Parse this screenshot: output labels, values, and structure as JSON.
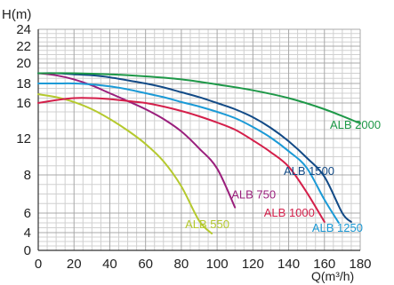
{
  "chart_data": {
    "type": "line",
    "ylabel": "H(m)",
    "xlabel": "Q(m³/h)",
    "xlim": [
      0,
      180
    ],
    "ylim_note": "y axis is non-linear; tick labels shown below",
    "x_ticks": [
      "0",
      "20",
      "40",
      "60",
      "80",
      "100",
      "120",
      "140",
      "160",
      "180"
    ],
    "y_ticks": [
      "0",
      "4",
      "6",
      "8",
      "12",
      "16",
      "18",
      "20",
      "22",
      "24"
    ],
    "grid": true,
    "series": [
      {
        "name": "ALB 550",
        "color": "#b5c92e",
        "x": [
          0,
          10,
          20,
          30,
          40,
          50,
          60,
          70,
          80,
          90,
          97
        ],
        "y": [
          16.9,
          16.6,
          16.1,
          15.3,
          14.2,
          12.9,
          11.4,
          9.5,
          7.4,
          5.2,
          3.8
        ]
      },
      {
        "name": "ALB 750",
        "color": "#9a1f7c",
        "x": [
          0,
          10,
          20,
          30,
          40,
          50,
          60,
          70,
          80,
          90,
          100,
          110
        ],
        "y": [
          19.0,
          18.8,
          18.4,
          17.8,
          17.0,
          16.2,
          15.3,
          14.2,
          12.8,
          10.9,
          8.7,
          6.3
        ]
      },
      {
        "name": "ALB 1000",
        "color": "#d41f4a",
        "x": [
          0,
          10,
          20,
          30,
          40,
          50,
          60,
          70,
          80,
          90,
          100,
          110,
          120,
          130,
          140,
          150,
          160
        ],
        "y": [
          16.0,
          16.3,
          16.5,
          16.5,
          16.4,
          16.2,
          16.0,
          15.6,
          15.1,
          14.5,
          13.8,
          13.0,
          11.8,
          10.5,
          8.9,
          7.1,
          5.1
        ]
      },
      {
        "name": "ALB 1250",
        "color": "#1b9ad6",
        "x": [
          0,
          10,
          20,
          30,
          40,
          50,
          60,
          70,
          80,
          90,
          100,
          110,
          120,
          130,
          140,
          150,
          160,
          168
        ],
        "y": [
          18.0,
          18.0,
          18.0,
          17.9,
          17.7,
          17.4,
          17.0,
          16.6,
          16.1,
          15.6,
          15.0,
          14.3,
          13.3,
          12.1,
          10.6,
          8.8,
          6.7,
          5.0
        ]
      },
      {
        "name": "ALB 1500",
        "color": "#124a86",
        "x": [
          0,
          10,
          20,
          30,
          40,
          50,
          60,
          70,
          80,
          90,
          100,
          110,
          120,
          130,
          140,
          150,
          160,
          170,
          175
        ],
        "y": [
          19.0,
          19.0,
          18.9,
          18.8,
          18.6,
          18.3,
          18.0,
          17.6,
          17.1,
          16.6,
          16.0,
          15.3,
          14.4,
          13.2,
          11.7,
          9.9,
          7.9,
          6.0,
          5.1
        ]
      },
      {
        "name": "ALB 2000",
        "color": "#1e9848",
        "x": [
          0,
          20,
          40,
          60,
          80,
          100,
          120,
          140,
          160,
          180
        ],
        "y": [
          19.0,
          19.0,
          18.9,
          18.7,
          18.4,
          17.9,
          17.3,
          16.5,
          15.3,
          13.7
        ]
      }
    ]
  }
}
